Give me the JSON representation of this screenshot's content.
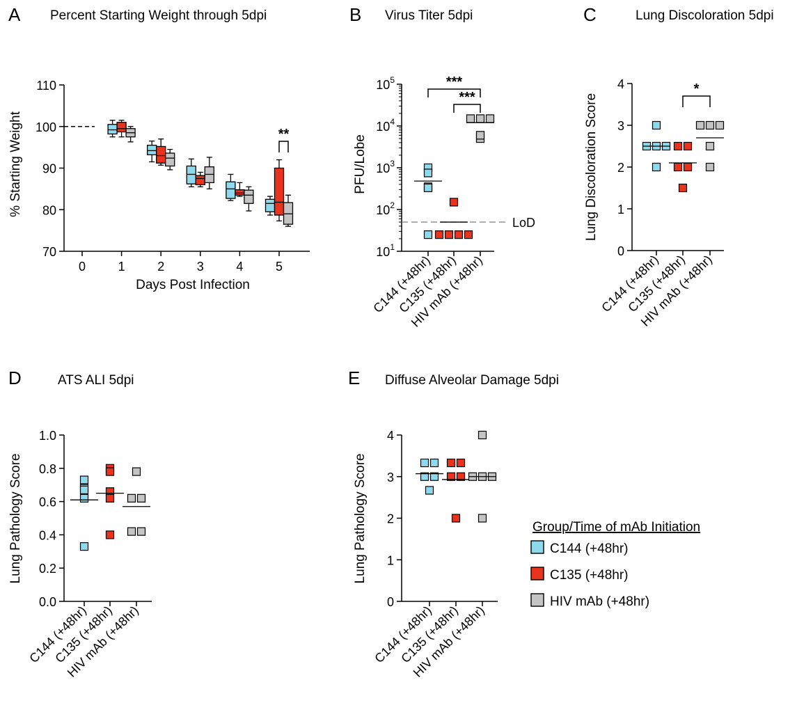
{
  "colors": {
    "C144": "#8fd9ec",
    "C135": "#e8331f",
    "HIV": "#c4c4c4",
    "stroke": "#000000"
  },
  "legend": {
    "title": "Group/Time of mAb Initiation",
    "items": [
      {
        "label": "C144 (+48hr)",
        "group": "C144"
      },
      {
        "label": "C135 (+48hr)",
        "group": "C135"
      },
      {
        "label": "HIV mAb (+48hr)",
        "group": "HIV"
      }
    ]
  },
  "chart_data": [
    {
      "id": "A",
      "letter": "A",
      "type": "box",
      "title": "Percent Starting Weight through 5dpi",
      "xlabel": "Days Post Infection",
      "ylabel": "% Starting Weight",
      "ylim": [
        70,
        110
      ],
      "yticks": [
        "70",
        "80",
        "90",
        "100",
        "110"
      ],
      "categories": [
        "0",
        "1",
        "2",
        "3",
        "4",
        "5"
      ],
      "day0_value": 100,
      "boxes": {
        "C144": [
          [
            97.5,
            98.2,
            99.2,
            100.5,
            101.5
          ],
          [
            91.5,
            93.2,
            94.2,
            95.5,
            96.5
          ],
          [
            85.5,
            86.2,
            88.5,
            90.5,
            92.2
          ],
          [
            82.2,
            82.7,
            85.0,
            86.7,
            88.5
          ],
          [
            78.7,
            79.5,
            81.5,
            82.5,
            83.2
          ]
        ],
        "C135": [
          [
            97.5,
            98.7,
            99.5,
            101.0,
            101.5
          ],
          [
            90.7,
            91.2,
            93.0,
            95.2,
            97.0
          ],
          [
            85.5,
            86.0,
            87.5,
            88.2,
            89.0
          ],
          [
            83.2,
            83.5,
            84.0,
            84.8,
            86.5
          ],
          [
            77.3,
            78.7,
            81.8,
            90.0,
            92.0
          ]
        ],
        "HIV": [
          [
            96.3,
            97.5,
            98.5,
            99.5,
            100.0
          ],
          [
            89.6,
            90.5,
            92.4,
            93.6,
            94.5
          ],
          [
            85.0,
            86.5,
            88.5,
            90.3,
            92.6
          ],
          [
            79.7,
            81.5,
            83.5,
            84.7,
            85.5
          ],
          [
            76.0,
            76.5,
            79.0,
            81.7,
            83.5
          ]
        ]
      },
      "significance": [
        {
          "label": "**",
          "day": "5",
          "between": [
            "C135",
            "HIV"
          ]
        }
      ]
    },
    {
      "id": "B",
      "letter": "B",
      "type": "scatter",
      "title": "Virus Titer 5dpi",
      "ylabel": "PFU/Lobe",
      "yscale": "log",
      "ylim": [
        10,
        100000
      ],
      "ytick_base": "10",
      "ytick_exps": [
        "1",
        "2",
        "3",
        "4",
        "5"
      ],
      "categories": [
        "C144 (+48hr)",
        "C135 (+48hr)",
        "HIV mAb (+48hr)"
      ],
      "points": {
        "C144": [
          1000,
          350,
          750,
          330,
          25
        ],
        "C135": [
          150,
          25,
          25,
          25,
          25
        ],
        "HIV": [
          15000,
          15000,
          15000,
          5000,
          6000
        ]
      },
      "means": {
        "C144": 480,
        "C135": 50,
        "HIV": 12000
      },
      "lod": {
        "value": 50,
        "label": "LoD"
      },
      "significance": [
        {
          "label": "***",
          "between": [
            "C144",
            "HIV"
          ]
        },
        {
          "label": "***",
          "between": [
            "C135",
            "HIV"
          ]
        }
      ]
    },
    {
      "id": "C",
      "letter": "C",
      "type": "scatter",
      "title": "Lung Discoloration 5dpi",
      "ylabel": "Lung Discoloration Score",
      "ylim": [
        0,
        4
      ],
      "yticks": [
        "0",
        "1",
        "2",
        "3",
        "4"
      ],
      "categories": [
        "C144 (+48hr)",
        "C135 (+48hr)",
        "HIV mAb (+48hr)"
      ],
      "points": {
        "C144": [
          3.0,
          2.5,
          2.5,
          2.5,
          2.0
        ],
        "C135": [
          2.5,
          2.5,
          2.0,
          2.0,
          1.5
        ],
        "HIV": [
          3.0,
          3.0,
          3.0,
          2.5,
          2.0
        ]
      },
      "means": {
        "C144": 2.5,
        "C135": 2.1,
        "HIV": 2.7
      },
      "significance": [
        {
          "label": "*",
          "between": [
            "C135",
            "HIV"
          ]
        }
      ]
    },
    {
      "id": "D",
      "letter": "D",
      "type": "scatter",
      "title": "ATS ALI 5dpi",
      "ylabel": "Lung Pathology Score",
      "ylim": [
        0,
        1
      ],
      "yticks": [
        "0.0",
        "0.2",
        "0.4",
        "0.6",
        "0.8",
        "1.0"
      ],
      "categories": [
        "C144 (+48hr)",
        "C135 (+48hr)",
        "HIV mAb (+48hr)"
      ],
      "points": {
        "C144": [
          0.73,
          0.68,
          0.67,
          0.62,
          0.33
        ],
        "C135": [
          0.8,
          0.78,
          0.66,
          0.62,
          0.4
        ],
        "HIV": [
          0.78,
          0.62,
          0.62,
          0.42,
          0.42
        ]
      },
      "means": {
        "C144": 0.61,
        "C135": 0.65,
        "HIV": 0.57
      }
    },
    {
      "id": "E",
      "letter": "E",
      "type": "scatter",
      "title": "Diffuse Alveolar Damage 5dpi",
      "ylabel": "Lung Pathology Score",
      "ylim": [
        0,
        4
      ],
      "yticks": [
        "0",
        "1",
        "2",
        "3",
        "4"
      ],
      "categories": [
        "C144 (+48hr)",
        "C135 (+48hr)",
        "HIV mAb (+48hr)"
      ],
      "points": {
        "C144": [
          3.33,
          3.33,
          3.0,
          3.0,
          2.67
        ],
        "C135": [
          3.33,
          3.33,
          3.0,
          3.0,
          2.0
        ],
        "HIV": [
          4.0,
          3.0,
          3.0,
          3.0,
          2.0
        ]
      },
      "means": {
        "C144": 3.07,
        "C135": 2.93,
        "HIV": 3.0
      }
    }
  ]
}
